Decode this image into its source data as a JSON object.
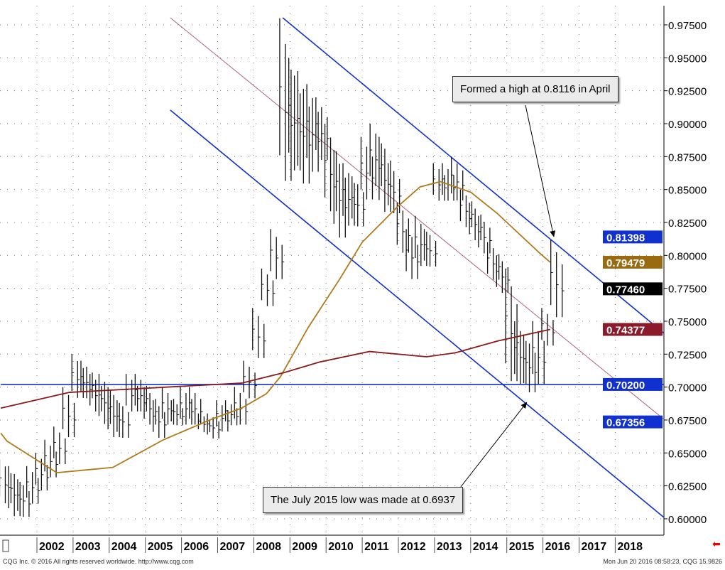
{
  "chart_data": {
    "type": "ohlc",
    "title": "",
    "ylim": [
      0.59,
      0.985
    ],
    "xlim": [
      2001.0,
      2019.35
    ],
    "y_ticks": [
      "0.97500",
      "0.95000",
      "0.92500",
      "0.90000",
      "0.87500",
      "0.85000",
      "0.82500",
      "0.80000",
      "0.77500",
      "0.75000",
      "0.72500",
      "0.70000",
      "0.67500",
      "0.65000",
      "0.62500",
      "0.60000"
    ],
    "x_ticks": [
      "2002",
      "2003",
      "2004",
      "2005",
      "2006",
      "2007",
      "2008",
      "2009",
      "2010",
      "2011",
      "2012",
      "2013",
      "2014",
      "2015",
      "2016",
      "2017",
      "2018"
    ],
    "grid": true,
    "bars_quarterly_high_low": [
      [
        0.645,
        0.61
      ],
      [
        0.64,
        0.6
      ],
      [
        0.63,
        0.6
      ],
      [
        0.64,
        0.61
      ],
      [
        0.65,
        0.62
      ],
      [
        0.66,
        0.63
      ],
      [
        0.67,
        0.64
      ],
      [
        0.7,
        0.66
      ],
      [
        0.725,
        0.69
      ],
      [
        0.72,
        0.69
      ],
      [
        0.71,
        0.68
      ],
      [
        0.71,
        0.67
      ],
      [
        0.7,
        0.66
      ],
      [
        0.69,
        0.66
      ],
      [
        0.71,
        0.68
      ],
      [
        0.71,
        0.68
      ],
      [
        0.7,
        0.67
      ],
      [
        0.69,
        0.66
      ],
      [
        0.7,
        0.67
      ],
      [
        0.69,
        0.67
      ],
      [
        0.7,
        0.67
      ],
      [
        0.7,
        0.67
      ],
      [
        0.68,
        0.665
      ],
      [
        0.68,
        0.66
      ],
      [
        0.69,
        0.665
      ],
      [
        0.69,
        0.67
      ],
      [
        0.7,
        0.67
      ],
      [
        0.72,
        0.69
      ],
      [
        0.76,
        0.72
      ],
      [
        0.79,
        0.76
      ],
      [
        0.82,
        0.78
      ],
      [
        0.98,
        0.85
      ],
      [
        0.95,
        0.86
      ],
      [
        0.94,
        0.85
      ],
      [
        0.93,
        0.86
      ],
      [
        0.92,
        0.87
      ],
      [
        0.9,
        0.83
      ],
      [
        0.88,
        0.81
      ],
      [
        0.87,
        0.82
      ],
      [
        0.86,
        0.82
      ],
      [
        0.89,
        0.84
      ],
      [
        0.9,
        0.85
      ],
      [
        0.89,
        0.83
      ],
      [
        0.87,
        0.83
      ],
      [
        0.84,
        0.8
      ],
      [
        0.82,
        0.78
      ],
      [
        0.83,
        0.79
      ],
      [
        0.82,
        0.79
      ],
      [
        0.87,
        0.84
      ],
      [
        0.87,
        0.84
      ],
      [
        0.875,
        0.84
      ],
      [
        0.85,
        0.82
      ],
      [
        0.84,
        0.81
      ],
      [
        0.83,
        0.8
      ],
      [
        0.81,
        0.78
      ],
      [
        0.8,
        0.77
      ],
      [
        0.79,
        0.7
      ],
      [
        0.75,
        0.7
      ],
      [
        0.74,
        0.6937
      ],
      [
        0.75,
        0.7
      ],
      [
        0.76,
        0.73
      ],
      [
        0.8116,
        0.75
      ]
    ],
    "series": [
      {
        "name": "short-ma",
        "color": "#b07a1a",
        "points": [
          [
            2001.0,
            0.665
          ],
          [
            2001.17,
            0.659
          ],
          [
            2002.55,
            0.635
          ],
          [
            2004.1,
            0.639
          ],
          [
            2005.5,
            0.66
          ],
          [
            2006.87,
            0.676
          ],
          [
            2007.66,
            0.684
          ],
          [
            2008.35,
            0.695
          ],
          [
            2008.74,
            0.708
          ],
          [
            2009.5,
            0.745
          ],
          [
            2010.4,
            0.783
          ],
          [
            2011.0,
            0.81
          ],
          [
            2011.98,
            0.837
          ],
          [
            2012.6,
            0.852
          ],
          [
            2013.16,
            0.856
          ],
          [
            2014.0,
            0.848
          ],
          [
            2014.73,
            0.832
          ],
          [
            2015.9,
            0.802
          ],
          [
            2016.2,
            0.7948
          ]
        ]
      },
      {
        "name": "long-ma",
        "color": "#8b1a1a",
        "points": [
          [
            2001.0,
            0.684
          ],
          [
            2002.9,
            0.696
          ],
          [
            2006.27,
            0.701
          ],
          [
            2007.66,
            0.703
          ],
          [
            2008.84,
            0.711
          ],
          [
            2009.82,
            0.719
          ],
          [
            2011.2,
            0.727
          ],
          [
            2012.78,
            0.723
          ],
          [
            2013.57,
            0.726
          ],
          [
            2014.75,
            0.735
          ],
          [
            2016.2,
            0.7438
          ]
        ]
      }
    ],
    "lines": [
      {
        "name": "upper-channel",
        "color": "#1030d0",
        "from": [
          2008.8,
          0.9804
        ],
        "to": [
          2019.35,
          0.7409
        ]
      },
      {
        "name": "lower-channel",
        "color": "#1030d0",
        "from": [
          2005.69,
          0.9103
        ],
        "to": [
          2019.35,
          0.601
        ]
      },
      {
        "name": "mid-trendline",
        "color": "#b06080",
        "from": [
          2005.69,
          0.9804
        ],
        "to": [
          2019.35,
          0.6755
        ]
      },
      {
        "name": "support-0.702",
        "color": "#1030d0",
        "from": [
          2001.0,
          0.702
        ],
        "to": [
          2019.35,
          0.702
        ]
      }
    ],
    "price_labels": [
      {
        "text": "0.81398",
        "value": 0.81398,
        "color": "#1030d0"
      },
      {
        "text": "0.79479",
        "value": 0.79479,
        "color": "#9a6a10"
      },
      {
        "text": "0.77460",
        "value": 0.7746,
        "color": "#000000"
      },
      {
        "text": "0.74377",
        "value": 0.74377,
        "color": "#8b1a2a"
      },
      {
        "text": "0.70200",
        "value": 0.702,
        "color": "#1030d0"
      },
      {
        "text": "0.67356",
        "value": 0.67356,
        "color": "#1030d0"
      }
    ],
    "annotations": [
      {
        "text": "Formed a high at 0.8116 in April",
        "target": [
          2016.3,
          0.8116
        ]
      },
      {
        "text": "The July 2015 low was made at 0.6937",
        "target": [
          2015.55,
          0.6937
        ]
      }
    ]
  },
  "footer": {
    "copyright": "CQG Inc. © 2016 All rights reserved worldwide. http://www.cqg.com",
    "timestamp": "Mon Jun 20 2016 08:58:23, CQG 15.9826"
  }
}
